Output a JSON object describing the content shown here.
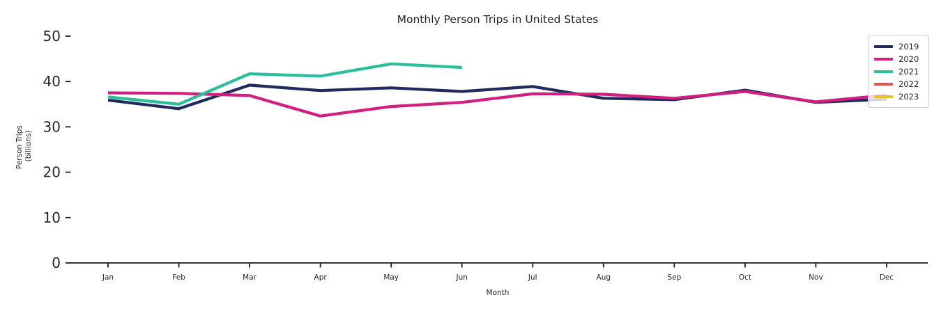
{
  "chart_data": {
    "type": "line",
    "title": "Monthly Person Trips in United States",
    "xlabel": "Month",
    "ylabel_lines": [
      "Person Trips",
      "(billions)"
    ],
    "categories": [
      "Jan",
      "Feb",
      "Mar",
      "Apr",
      "May",
      "Jun",
      "Jul",
      "Aug",
      "Sep",
      "Oct",
      "Nov",
      "Dec"
    ],
    "y_ticks": [
      0,
      10,
      20,
      30,
      40,
      50
    ],
    "ylim": [
      0,
      50
    ],
    "grid": false,
    "legend_position": "upper right",
    "series": [
      {
        "name": "2019",
        "color": "#212a5e",
        "values": [
          35.9,
          34.0,
          39.2,
          38.0,
          38.6,
          37.8,
          38.9,
          36.3,
          36.0,
          38.1,
          35.4,
          36.1
        ]
      },
      {
        "name": "2020",
        "color": "#d11e7f",
        "values": [
          37.5,
          37.4,
          36.9,
          32.4,
          34.5,
          35.4,
          37.3,
          37.2,
          36.3,
          37.8,
          35.5,
          37.0
        ]
      },
      {
        "name": "2021",
        "color": "#2abf9b",
        "values": [
          36.6,
          35.0,
          41.7,
          41.2,
          43.9,
          43.1
        ]
      },
      {
        "name": "2022",
        "color": "#e0534f",
        "values": []
      },
      {
        "name": "2023",
        "color": "#e6c229",
        "values": []
      }
    ]
  }
}
